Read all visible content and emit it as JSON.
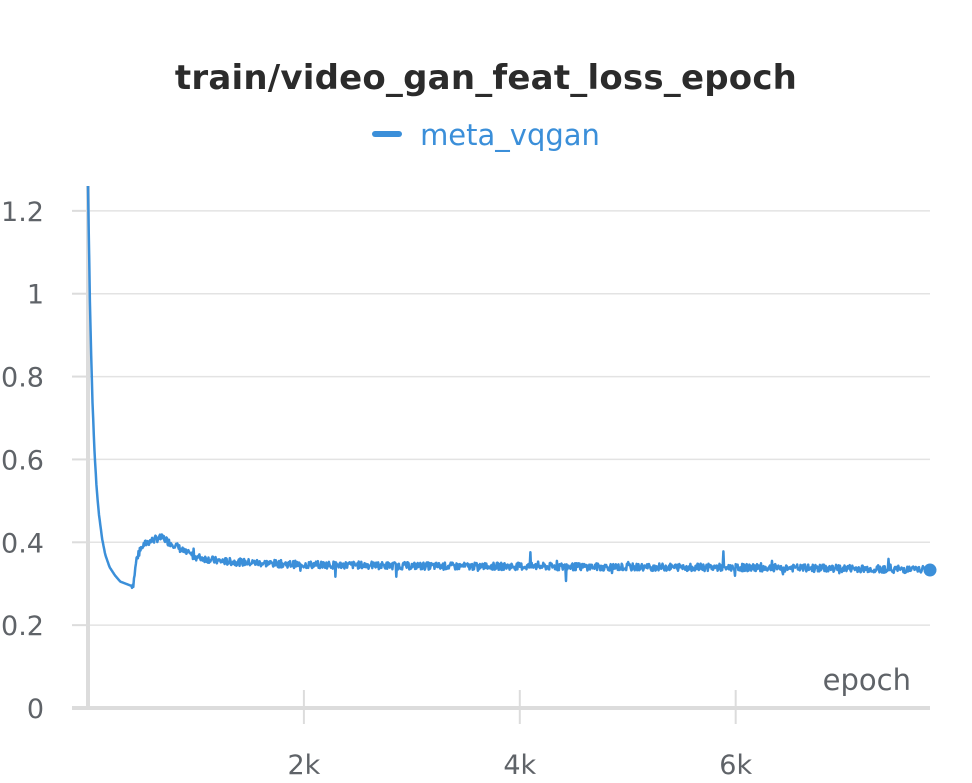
{
  "chart_data": {
    "type": "line",
    "title": "train/video_gan_feat_loss_epoch",
    "xlabel": "epoch",
    "ylabel": "",
    "xlim": [
      0,
      7800
    ],
    "ylim": [
      0,
      1.26
    ],
    "x_ticks": [
      2000,
      4000,
      6000
    ],
    "x_tick_labels": [
      "2k",
      "4k",
      "6k"
    ],
    "y_ticks": [
      0,
      0.2,
      0.4,
      0.6,
      0.8,
      1,
      1.2
    ],
    "y_tick_labels": [
      "0",
      "0.2",
      "0.4",
      "0.6",
      "0.8",
      "1",
      "1.2"
    ],
    "grid": true,
    "legend_position": "top-center",
    "series": [
      {
        "name": "meta_vqgan",
        "color": "#3b8fd9",
        "x": [
          0,
          20,
          40,
          60,
          80,
          100,
          130,
          160,
          200,
          250,
          300,
          350,
          400,
          420,
          450,
          500,
          550,
          600,
          650,
          700,
          750,
          800,
          850,
          900,
          1000,
          1100,
          1200,
          1400,
          1600,
          1800,
          2000,
          2500,
          3000,
          3500,
          4000,
          4500,
          5000,
          5500,
          6000,
          6500,
          7000,
          7500,
          7800
        ],
        "values": [
          1.26,
          0.95,
          0.75,
          0.62,
          0.53,
          0.47,
          0.41,
          0.37,
          0.34,
          0.32,
          0.305,
          0.3,
          0.295,
          0.3,
          0.36,
          0.39,
          0.4,
          0.405,
          0.41,
          0.41,
          0.4,
          0.395,
          0.385,
          0.375,
          0.365,
          0.36,
          0.355,
          0.352,
          0.35,
          0.348,
          0.346,
          0.345,
          0.343,
          0.342,
          0.342,
          0.341,
          0.34,
          0.34,
          0.339,
          0.338,
          0.337,
          0.335,
          0.333
        ]
      }
    ]
  }
}
